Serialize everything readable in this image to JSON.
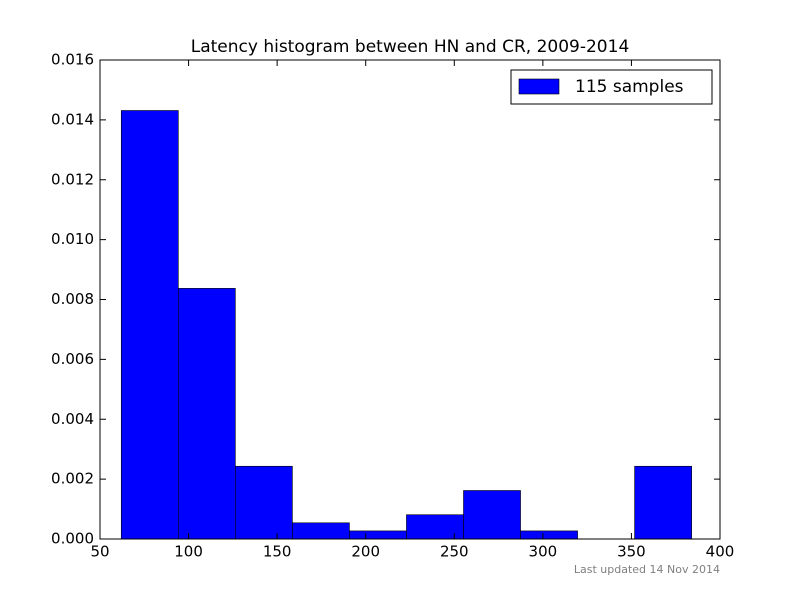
{
  "chart_data": {
    "type": "histogram",
    "title": "Latency histogram between HN and CR, 2009-2014",
    "bins": [
      62,
      94.2,
      126.4,
      158.6,
      190.8,
      223,
      255.2,
      287.4,
      319.6,
      351.8,
      384
    ],
    "series": [
      {
        "name": "115 samples",
        "color": "#0000ff",
        "values": [
          0.014313,
          0.008372,
          0.00243,
          0.00054,
          0.00027,
          0.00081,
          0.00162,
          0.00027,
          0,
          0.00243
        ]
      }
    ],
    "xlim": [
      50,
      400
    ],
    "xticks": [
      50,
      100,
      150,
      200,
      250,
      300,
      350,
      400
    ],
    "ylim": [
      0,
      0.016
    ],
    "yticks": [
      {
        "value": 0,
        "label": "0.000"
      },
      {
        "value": 0.002,
        "label": "0.002"
      },
      {
        "value": 0.004,
        "label": "0.004"
      },
      {
        "value": 0.006,
        "label": "0.006"
      },
      {
        "value": 0.008,
        "label": "0.008"
      },
      {
        "value": 0.01,
        "label": "0.010"
      },
      {
        "value": 0.012,
        "label": "0.012"
      },
      {
        "value": 0.014,
        "label": "0.014"
      },
      {
        "value": 0.016,
        "label": "0.016"
      }
    ],
    "legend": "upper right",
    "annotation": "Last updated 14 Nov 2014"
  }
}
